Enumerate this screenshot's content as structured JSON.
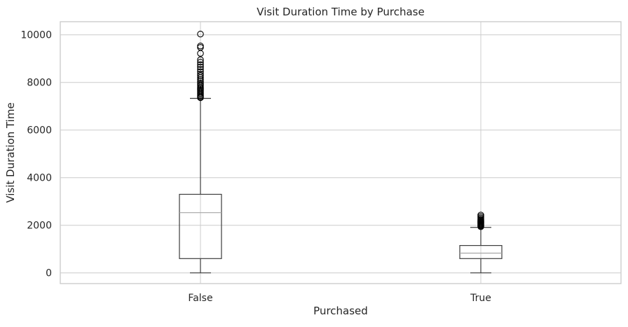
{
  "chart_data": {
    "type": "box",
    "title": "Visit Duration Time by Purchase",
    "xlabel": "Purchased",
    "ylabel": "Visit Duration Time",
    "ylim": [
      -450,
      10550
    ],
    "yticks": [
      0,
      2000,
      4000,
      6000,
      8000,
      10000
    ],
    "grid": true,
    "categories": [
      "False",
      "True"
    ],
    "boxes": [
      {
        "category": "False",
        "whisker_low": 0,
        "q1": 600,
        "median": 2530,
        "q3": 3300,
        "whisker_high": 7330,
        "outliers": [
          7360,
          7400,
          7450,
          7500,
          7550,
          7600,
          7650,
          7700,
          7750,
          7800,
          7860,
          7920,
          7980,
          8050,
          8120,
          8200,
          8280,
          8350,
          8450,
          8550,
          8650,
          8750,
          8850,
          8950,
          9220,
          9470,
          9530,
          10030
        ]
      },
      {
        "category": "True",
        "whisker_low": 0,
        "q1": 600,
        "median": 830,
        "q3": 1150,
        "whisker_high": 1910,
        "outliers": [
          1940,
          1970,
          2000,
          2030,
          2060,
          2090,
          2120,
          2150,
          2180,
          2220,
          2260,
          2310,
          2370,
          2430
        ]
      }
    ],
    "colors": {
      "box": "#3d3d3d",
      "median": "#a6a6a6",
      "grid": "#cccccc",
      "axes_edge": "#cccccc",
      "outlier_edge": "#000000"
    }
  }
}
